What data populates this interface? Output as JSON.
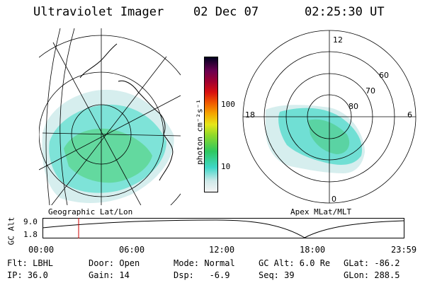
{
  "header": {
    "title": "Ultraviolet Imager",
    "date": "02 Dec 07",
    "time": "02:25:30 UT"
  },
  "left_panel": {
    "label": "Geographic Lat/Lon"
  },
  "right_panel": {
    "label": "Apex MLat/MLT",
    "mlt_labels": {
      "top": "12",
      "left": "18",
      "right": "6",
      "bottom": "0"
    },
    "lat_labels": [
      "60",
      "70",
      "80"
    ]
  },
  "colorbar": {
    "unit": "photon cm⁻²s⁻¹",
    "tick_labels": [
      "100",
      "10"
    ]
  },
  "altitude_plot": {
    "ylabel": "GC Alt",
    "yticks": [
      "9.0",
      "1.8"
    ],
    "xticks": [
      "00:00",
      "06:00",
      "12:00",
      "18:00",
      "23:59"
    ]
  },
  "metadata": {
    "row1": [
      "Flt: LBHL",
      "Door: Open",
      "Mode: Normal",
      "GC Alt: 6.0 Re",
      "GLat: -86.2"
    ],
    "row2": [
      "IP: 36.0",
      "Gain: 14",
      "Dsp:   -6.9",
      "Seq: 39",
      "GLon: 288.5"
    ]
  },
  "colors": {
    "colorbar_stops": [
      "#f4f4f4",
      "#cfe9e9",
      "#3fd7c8",
      "#2ec860",
      "#8fd92a",
      "#e6e619",
      "#f5a600",
      "#f05a00",
      "#d81010",
      "#a00030",
      "#6a0050",
      "#30003a",
      "#000020"
    ],
    "marker": "#cc0000"
  }
}
